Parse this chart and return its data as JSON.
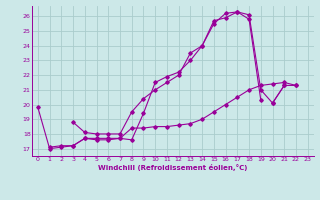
{
  "title": "",
  "xlabel": "Windchill (Refroidissement éolien,°C)",
  "bg_color": "#cce8e8",
  "grid_color": "#aacccc",
  "line_color": "#990099",
  "xlim": [
    -0.5,
    23.5
  ],
  "ylim": [
    16.5,
    26.7
  ],
  "xticks": [
    0,
    1,
    2,
    3,
    4,
    5,
    6,
    7,
    8,
    9,
    10,
    11,
    12,
    13,
    14,
    15,
    16,
    17,
    18,
    19,
    20,
    21,
    22,
    23
  ],
  "yticks": [
    17,
    18,
    19,
    20,
    21,
    22,
    23,
    24,
    25,
    26
  ],
  "series": [
    [
      0,
      19.8
    ],
    [
      1,
      17.0
    ],
    [
      2,
      17.1
    ],
    [
      3,
      17.2
    ],
    [
      4,
      17.7
    ],
    [
      5,
      17.6
    ],
    [
      6,
      17.6
    ],
    [
      7,
      17.7
    ],
    [
      8,
      17.6
    ],
    [
      9,
      19.4
    ],
    [
      10,
      21.5
    ],
    [
      11,
      21.9
    ],
    [
      12,
      22.2
    ],
    [
      13,
      23.0
    ],
    [
      14,
      24.0
    ],
    [
      15,
      25.7
    ],
    [
      16,
      25.9
    ],
    [
      17,
      26.3
    ],
    [
      18,
      26.1
    ],
    [
      19,
      21.0
    ],
    [
      20,
      20.1
    ],
    [
      21,
      21.3
    ]
  ],
  "series2": [
    [
      3,
      18.8
    ],
    [
      4,
      18.1
    ],
    [
      5,
      18.0
    ],
    [
      6,
      18.0
    ],
    [
      7,
      18.0
    ],
    [
      8,
      19.5
    ],
    [
      9,
      20.4
    ],
    [
      10,
      21.0
    ],
    [
      11,
      21.5
    ],
    [
      12,
      22.0
    ],
    [
      13,
      23.5
    ],
    [
      14,
      24.0
    ],
    [
      15,
      25.5
    ],
    [
      16,
      26.2
    ],
    [
      17,
      26.3
    ],
    [
      18,
      25.8
    ],
    [
      19,
      20.3
    ]
  ],
  "series3": [
    [
      1,
      17.1
    ],
    [
      2,
      17.2
    ],
    [
      3,
      17.2
    ],
    [
      4,
      17.7
    ],
    [
      5,
      17.7
    ],
    [
      6,
      17.7
    ],
    [
      7,
      17.7
    ],
    [
      8,
      18.4
    ],
    [
      9,
      18.4
    ],
    [
      10,
      18.5
    ],
    [
      11,
      18.5
    ],
    [
      12,
      18.6
    ],
    [
      13,
      18.7
    ],
    [
      14,
      19.0
    ],
    [
      15,
      19.5
    ],
    [
      16,
      20.0
    ],
    [
      17,
      20.5
    ],
    [
      18,
      21.0
    ],
    [
      19,
      21.3
    ],
    [
      20,
      21.4
    ],
    [
      21,
      21.5
    ],
    [
      22,
      21.3
    ]
  ],
  "series4_x": [
    20,
    21,
    22
  ],
  "series4_y": [
    20.1,
    21.3,
    21.3
  ]
}
